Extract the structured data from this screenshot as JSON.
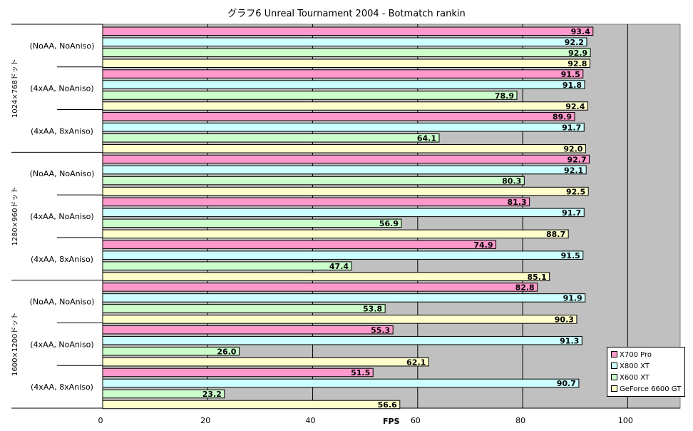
{
  "chart_data": {
    "type": "bar",
    "orientation": "horizontal",
    "title": "グラフ6  Unreal Tournament 2004 - Botmatch rankin",
    "xlabel": "FPS",
    "ylabel": "",
    "xlim": [
      0,
      110
    ],
    "x_ticks": [
      0,
      20,
      40,
      60,
      80,
      100
    ],
    "grid": true,
    "legend_position": "bottom-right",
    "plot_background": "#c0c0c0",
    "groups": [
      {
        "label": "1024×768ドット",
        "categories": [
          "(NoAA, NoAniso)",
          "(4xAA, NoAniso)",
          "(4xAA, 8xAniso)"
        ]
      },
      {
        "label": "1280×960ドット",
        "categories": [
          "(NoAA, NoAniso)",
          "(4xAA, NoAniso)",
          "(4xAA, 8xAniso)"
        ]
      },
      {
        "label": "1600×1200ドット",
        "categories": [
          "(NoAA, NoAniso)",
          "(4xAA, NoAniso)",
          "(4xAA, 8xAniso)"
        ]
      }
    ],
    "series": [
      {
        "name": "X700 Pro",
        "color": "#ff99cc",
        "values": [
          93.4,
          91.5,
          89.9,
          92.7,
          81.3,
          74.9,
          82.8,
          55.3,
          51.5
        ]
      },
      {
        "name": "X800 XT",
        "color": "#ccffff",
        "values": [
          92.2,
          91.8,
          91.7,
          92.1,
          91.7,
          91.5,
          91.9,
          91.3,
          90.7
        ]
      },
      {
        "name": "X600 XT",
        "color": "#ccffcc",
        "values": [
          92.9,
          78.9,
          64.1,
          80.3,
          56.9,
          47.4,
          53.8,
          26.0,
          23.2
        ]
      },
      {
        "name": "GeForce 6600 GT",
        "color": "#ffffcc",
        "values": [
          92.8,
          92.4,
          92.0,
          92.5,
          88.7,
          85.1,
          90.3,
          62.1,
          56.6
        ]
      }
    ]
  }
}
